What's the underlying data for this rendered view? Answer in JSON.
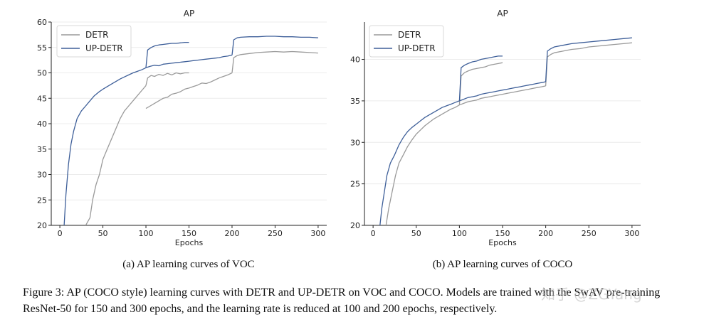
{
  "chart_data": [
    {
      "type": "line",
      "title": "AP",
      "xlabel": "Epochs",
      "ylabel": "",
      "xlim": [
        -10,
        310
      ],
      "ylim": [
        20,
        60
      ],
      "xticks": [
        0,
        50,
        100,
        150,
        200,
        250,
        300
      ],
      "yticks": [
        20,
        25,
        30,
        35,
        40,
        45,
        50,
        55,
        60
      ],
      "grid": "horizontal",
      "legend": "top-left",
      "caption": "(a) AP learning curves of VOC",
      "series": [
        {
          "name": "DETR",
          "color": "#9a9a9a",
          "x": [
            30,
            35,
            38,
            42,
            46,
            50,
            55,
            60,
            65,
            70,
            75,
            80,
            85,
            90,
            95,
            100
          ],
          "y": [
            20,
            21.5,
            25,
            28,
            30,
            33,
            35,
            37,
            39,
            41,
            42.5,
            43.5,
            44.5,
            45.5,
            46.5,
            47.5
          ]
        },
        {
          "name": "DETR",
          "color": "#9a9a9a",
          "x": [
            100,
            102,
            106,
            110,
            115,
            120,
            125,
            130,
            135,
            140,
            145,
            150
          ],
          "y": [
            47.5,
            49,
            49.5,
            49.3,
            49.7,
            49.5,
            49.9,
            49.6,
            50,
            49.8,
            50,
            50
          ]
        },
        {
          "name": "DETR",
          "color": "#9a9a9a",
          "x": [
            100,
            105,
            110,
            115,
            120,
            125,
            130,
            135,
            140,
            145,
            150,
            155,
            160,
            165,
            170,
            175,
            180,
            185,
            190,
            195,
            200
          ],
          "y": [
            43,
            43.5,
            44,
            44.5,
            45,
            45.2,
            45.8,
            46,
            46.3,
            46.8,
            47,
            47.3,
            47.6,
            48,
            47.9,
            48.2,
            48.6,
            49,
            49.3,
            49.6,
            50
          ]
        },
        {
          "name": "DETR",
          "color": "#9a9a9a",
          "x": [
            200,
            202,
            206,
            210,
            220,
            230,
            240,
            250,
            260,
            270,
            280,
            290,
            300
          ],
          "y": [
            50,
            53,
            53.4,
            53.6,
            53.8,
            54,
            54.1,
            54.2,
            54.1,
            54.2,
            54.1,
            54,
            53.9
          ]
        },
        {
          "name": "UP-DETR",
          "color": "#3e5f99",
          "x": [
            5,
            7,
            10,
            13,
            16,
            20,
            25,
            30,
            35,
            40,
            45,
            50,
            55,
            60,
            65,
            70,
            75,
            80,
            85,
            90,
            95,
            100
          ],
          "y": [
            20,
            26,
            32,
            36,
            38.5,
            41,
            42.5,
            43.5,
            44.5,
            45.5,
            46.2,
            46.8,
            47.3,
            47.8,
            48.3,
            48.8,
            49.2,
            49.6,
            50,
            50.3,
            50.6,
            51
          ]
        },
        {
          "name": "UP-DETR",
          "color": "#3e5f99",
          "x": [
            100,
            102,
            106,
            110,
            115,
            120,
            125,
            130,
            135,
            140,
            145,
            150
          ],
          "y": [
            51,
            54.5,
            55,
            55.3,
            55.5,
            55.6,
            55.7,
            55.8,
            55.8,
            55.9,
            56,
            56
          ]
        },
        {
          "name": "UP-DETR",
          "color": "#3e5f99",
          "x": [
            100,
            105,
            110,
            115,
            120,
            125,
            130,
            135,
            140,
            145,
            150,
            155,
            160,
            165,
            170,
            175,
            180,
            185,
            190,
            195,
            200
          ],
          "y": [
            51,
            51.3,
            51.5,
            51.4,
            51.7,
            51.8,
            51.9,
            52,
            52.1,
            52.2,
            52.3,
            52.4,
            52.5,
            52.6,
            52.7,
            52.8,
            52.9,
            53,
            53.2,
            53.3,
            53.5
          ]
        },
        {
          "name": "UP-DETR",
          "color": "#3e5f99",
          "x": [
            200,
            202,
            206,
            210,
            220,
            230,
            240,
            250,
            260,
            270,
            280,
            290,
            300
          ],
          "y": [
            53.5,
            56.5,
            56.9,
            57,
            57.1,
            57.1,
            57.2,
            57.2,
            57.1,
            57.1,
            57,
            57,
            56.9
          ]
        }
      ]
    },
    {
      "type": "line",
      "title": "AP",
      "xlabel": "Epochs",
      "ylabel": "",
      "xlim": [
        -10,
        310
      ],
      "ylim": [
        20,
        44.5
      ],
      "xticks": [
        0,
        50,
        100,
        150,
        200,
        250,
        300
      ],
      "yticks": [
        20,
        25,
        30,
        35,
        40
      ],
      "grid": "horizontal",
      "legend": "top-center",
      "caption": "(b) AP learning curves of COCO",
      "series": [
        {
          "name": "DETR",
          "color": "#9a9a9a",
          "x": [
            15,
            18,
            22,
            26,
            30,
            35,
            40,
            45,
            50,
            55,
            60,
            65,
            70,
            75,
            80,
            85,
            90,
            95,
            100
          ],
          "y": [
            20,
            22,
            24,
            26,
            27.5,
            28.5,
            29.5,
            30.3,
            31,
            31.5,
            32,
            32.4,
            32.8,
            33.1,
            33.4,
            33.7,
            34,
            34.2,
            34.5
          ]
        },
        {
          "name": "DETR",
          "color": "#9a9a9a",
          "x": [
            100,
            102,
            106,
            110,
            115,
            120,
            125,
            130,
            135,
            140,
            145,
            150
          ],
          "y": [
            34.5,
            38,
            38.4,
            38.6,
            38.8,
            38.9,
            39,
            39.1,
            39.3,
            39.4,
            39.5,
            39.6
          ]
        },
        {
          "name": "DETR",
          "color": "#9a9a9a",
          "x": [
            100,
            105,
            110,
            115,
            120,
            125,
            130,
            135,
            140,
            145,
            150,
            155,
            160,
            165,
            170,
            175,
            180,
            185,
            190,
            195,
            200
          ],
          "y": [
            34.5,
            34.7,
            34.9,
            35,
            35.1,
            35.3,
            35.4,
            35.5,
            35.6,
            35.7,
            35.8,
            35.9,
            36,
            36.1,
            36.2,
            36.3,
            36.4,
            36.5,
            36.6,
            36.7,
            36.8
          ]
        },
        {
          "name": "DETR",
          "color": "#9a9a9a",
          "x": [
            200,
            202,
            206,
            210,
            220,
            230,
            240,
            250,
            260,
            270,
            280,
            290,
            300
          ],
          "y": [
            36.8,
            40.3,
            40.6,
            40.8,
            41,
            41.2,
            41.3,
            41.5,
            41.6,
            41.7,
            41.8,
            41.9,
            42
          ]
        },
        {
          "name": "UP-DETR",
          "color": "#3e5f99",
          "x": [
            8,
            10,
            13,
            16,
            20,
            25,
            30,
            35,
            40,
            45,
            50,
            55,
            60,
            65,
            70,
            75,
            80,
            85,
            90,
            95,
            100
          ],
          "y": [
            20,
            22,
            24,
            26,
            27.5,
            28.5,
            29.7,
            30.6,
            31.3,
            31.8,
            32.2,
            32.6,
            33,
            33.3,
            33.6,
            33.9,
            34.2,
            34.4,
            34.6,
            34.8,
            35
          ]
        },
        {
          "name": "UP-DETR",
          "color": "#3e5f99",
          "x": [
            100,
            102,
            106,
            110,
            115,
            120,
            125,
            130,
            135,
            140,
            145,
            150
          ],
          "y": [
            35,
            39,
            39.3,
            39.5,
            39.7,
            39.8,
            40,
            40.1,
            40.2,
            40.3,
            40.4,
            40.4
          ]
        },
        {
          "name": "UP-DETR",
          "color": "#3e5f99",
          "x": [
            100,
            105,
            110,
            115,
            120,
            125,
            130,
            135,
            140,
            145,
            150,
            155,
            160,
            165,
            170,
            175,
            180,
            185,
            190,
            195,
            200
          ],
          "y": [
            35,
            35.2,
            35.4,
            35.5,
            35.6,
            35.8,
            35.9,
            36,
            36.1,
            36.2,
            36.3,
            36.4,
            36.5,
            36.6,
            36.7,
            36.8,
            36.9,
            37,
            37.1,
            37.2,
            37.3
          ]
        },
        {
          "name": "UP-DETR",
          "color": "#3e5f99",
          "x": [
            200,
            202,
            206,
            210,
            220,
            230,
            240,
            250,
            260,
            270,
            280,
            290,
            300
          ],
          "y": [
            37.3,
            41,
            41.3,
            41.5,
            41.7,
            41.9,
            42,
            42.1,
            42.2,
            42.3,
            42.4,
            42.5,
            42.6
          ]
        }
      ]
    }
  ],
  "figure_caption": "Figure 3: AP (COCO style) learning curves with DETR and UP-DETR on VOC and COCO. Models are trained with the SwAV pre-training ResNet-50 for 150 and 300 epochs, and the learning rate is reduced at 100 and 200 epochs, respectively.",
  "watermark": "知乎 @ZGYang"
}
